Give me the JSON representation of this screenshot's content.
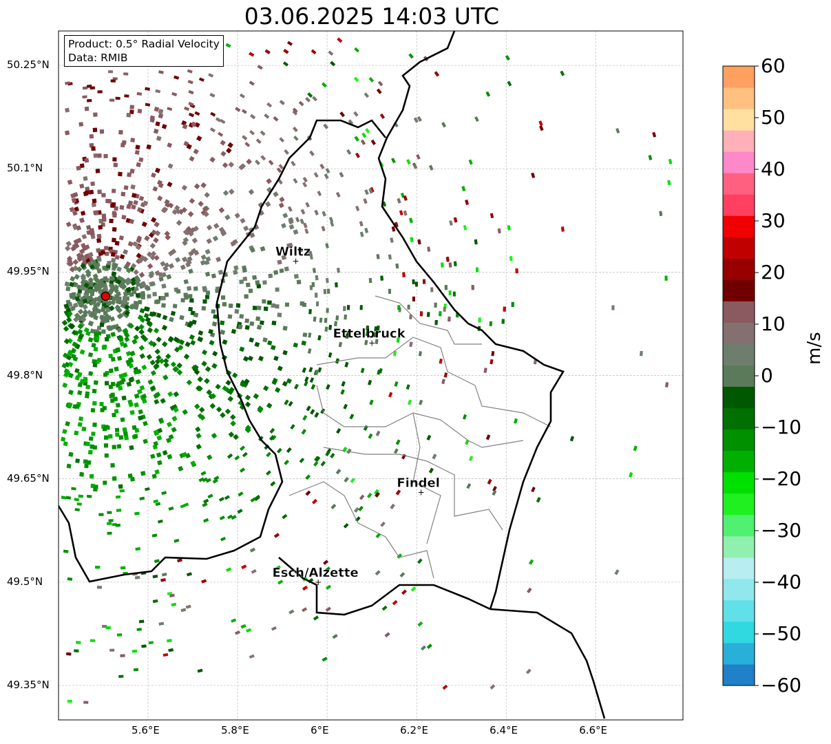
{
  "title": "03.06.2025 14:03 UTC",
  "annotation": {
    "product": "Product: 0.5° Radial Velocity",
    "data": "Data: RMIB"
  },
  "axes": {
    "lon_ticks": [
      "5.6°E",
      "5.8°E",
      "6°E",
      "6.2°E",
      "6.4°E",
      "6.6°E"
    ],
    "lon_values": [
      5.6,
      5.8,
      6.0,
      6.2,
      6.4,
      6.6
    ],
    "lat_ticks": [
      "50.25°N",
      "50.1°N",
      "49.95°N",
      "49.8°N",
      "49.65°N",
      "49.5°N",
      "49.35°N"
    ],
    "lat_values": [
      50.25,
      50.1,
      49.95,
      49.8,
      49.65,
      49.5,
      49.35
    ],
    "lon_range": [
      5.4,
      6.795
    ],
    "lat_range": [
      49.3,
      50.3
    ]
  },
  "colorbar": {
    "label": "m/s",
    "ticks": [
      "60",
      "50",
      "40",
      "30",
      "20",
      "10",
      "0",
      "−10",
      "−20",
      "−30",
      "−40",
      "−50",
      "−60"
    ],
    "range": [
      -60,
      60
    ],
    "colors": [
      "#2080c8",
      "#28b0d8",
      "#30d8e0",
      "#60e0e8",
      "#90e8ec",
      "#b8eef0",
      "#90f0b0",
      "#50f070",
      "#20f020",
      "#00e000",
      "#00b000",
      "#009000",
      "#007000",
      "#005800",
      "#5a7a5a",
      "#6e7e6e",
      "#847070",
      "#8a5a60",
      "#700000",
      "#980000",
      "#c00000",
      "#f00000",
      "#ff4060",
      "#ff6080",
      "#ff88c8",
      "#ffb0b8",
      "#ffe0a0",
      "#ffc080",
      "#ffa060"
    ]
  },
  "radar_site": {
    "lon": 5.505,
    "lat": 49.915
  },
  "cities": [
    {
      "name": "Wiltz",
      "lon": 5.93,
      "lat": 49.966
    },
    {
      "name": "Ettelbruck",
      "lon": 6.1,
      "lat": 49.847
    },
    {
      "name": "Findel",
      "lon": 6.21,
      "lat": 49.63
    },
    {
      "name": "Esch/Alzette",
      "lon": 5.98,
      "lat": 49.5
    }
  ]
}
